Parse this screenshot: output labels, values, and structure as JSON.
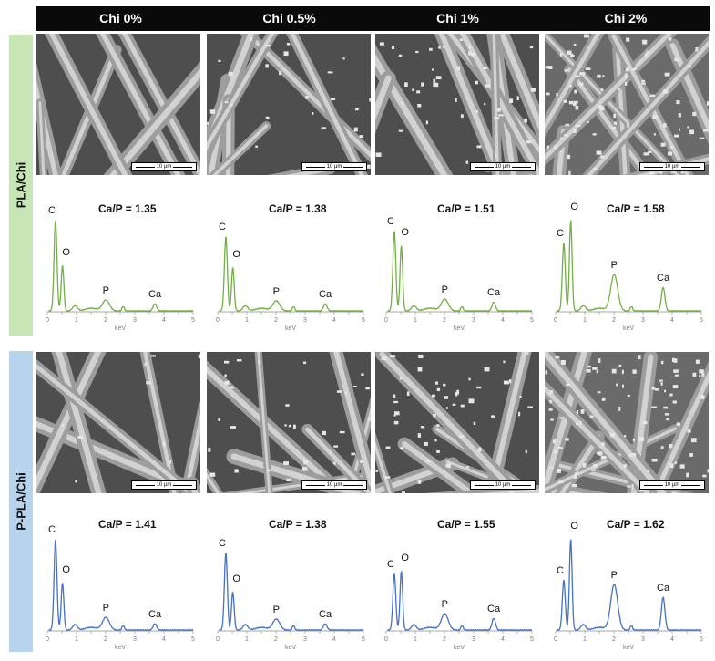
{
  "columns": [
    "Chi 0%",
    "Chi 0.5%",
    "Chi 1%",
    "Chi 2%"
  ],
  "rows": [
    {
      "label": "PLA/Chi",
      "band_color": "#c8e6b5",
      "line_color": "#72b043",
      "ratios": [
        "Ca/P = 1.35",
        "Ca/P = 1.38",
        "Ca/P = 1.51",
        "Ca/P = 1.58"
      ]
    },
    {
      "label": "P-PLA/Chi",
      "band_color": "#b8d3ec",
      "line_color": "#4472c4",
      "ratios": [
        "Ca/P = 1.41",
        "Ca/P = 1.38",
        "Ca/P = 1.55",
        "Ca/P = 1.62"
      ]
    }
  ],
  "scale_bar": "10 µm",
  "eds_axis": {
    "xlabel": "keV",
    "ticks": [
      "0",
      "0.5",
      "1",
      "1.5",
      "2",
      "2.5",
      "3",
      "3.5",
      "4",
      "4.5",
      "5"
    ]
  },
  "peak_labels": [
    "C",
    "O",
    "P",
    "Ca"
  ],
  "chart_data": {
    "type": "line",
    "title": "",
    "xlabel": "keV",
    "ylabel": "",
    "xlim": [
      0,
      5
    ],
    "peak_positions_keV": {
      "C": 0.28,
      "O": 0.52,
      "P": 2.01,
      "Ca": 3.69
    },
    "panels": [
      {
        "row": "PLA/Chi",
        "column": "Chi 0%",
        "ca_p": 1.35,
        "rel_peaks": {
          "C": 1.0,
          "O": 0.5,
          "P": 0.12,
          "Ca": 0.08
        }
      },
      {
        "row": "PLA/Chi",
        "column": "Chi 0.5%",
        "ca_p": 1.38,
        "rel_peaks": {
          "C": 0.82,
          "O": 0.48,
          "P": 0.11,
          "Ca": 0.08
        }
      },
      {
        "row": "PLA/Chi",
        "column": "Chi 1%",
        "ca_p": 1.51,
        "rel_peaks": {
          "C": 0.88,
          "O": 0.72,
          "P": 0.13,
          "Ca": 0.1
        }
      },
      {
        "row": "PLA/Chi",
        "column": "Chi 2%",
        "ca_p": 1.58,
        "rel_peaks": {
          "C": 0.75,
          "O": 1.0,
          "P": 0.4,
          "Ca": 0.26
        }
      },
      {
        "row": "P-PLA/Chi",
        "column": "Chi 0%",
        "ca_p": 1.41,
        "rel_peaks": {
          "C": 1.0,
          "O": 0.52,
          "P": 0.14,
          "Ca": 0.07
        }
      },
      {
        "row": "P-PLA/Chi",
        "column": "Chi 0.5%",
        "ca_p": 1.38,
        "rel_peaks": {
          "C": 0.85,
          "O": 0.42,
          "P": 0.12,
          "Ca": 0.07
        }
      },
      {
        "row": "P-PLA/Chi",
        "column": "Chi 1%",
        "ca_p": 1.55,
        "rel_peaks": {
          "C": 0.62,
          "O": 0.65,
          "P": 0.18,
          "Ca": 0.13
        }
      },
      {
        "row": "P-PLA/Chi",
        "column": "Chi 2%",
        "ca_p": 1.62,
        "rel_peaks": {
          "C": 0.55,
          "O": 1.0,
          "P": 0.5,
          "Ca": 0.36
        }
      }
    ]
  }
}
